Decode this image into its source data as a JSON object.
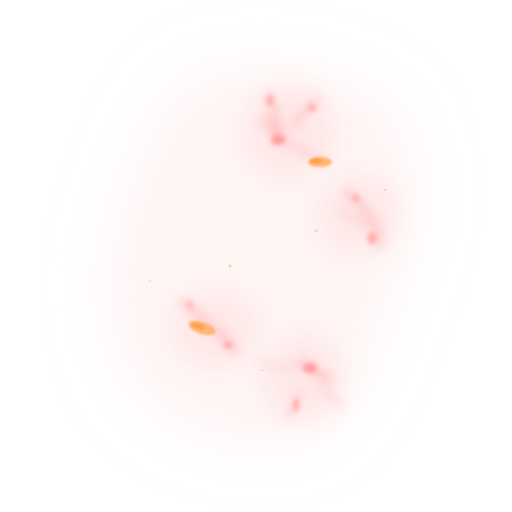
{
  "image": {
    "kind": "nebula-haze",
    "background": "#ffffff",
    "palette": {
      "haze": "#fff3f3",
      "glow": "#ffd6d6",
      "filament": "#ff9a9a",
      "filament_deep": "#ff7f7f",
      "knot": "#ffb060",
      "knot_core": "#ff9940",
      "speck": "#e6e08a"
    }
  }
}
